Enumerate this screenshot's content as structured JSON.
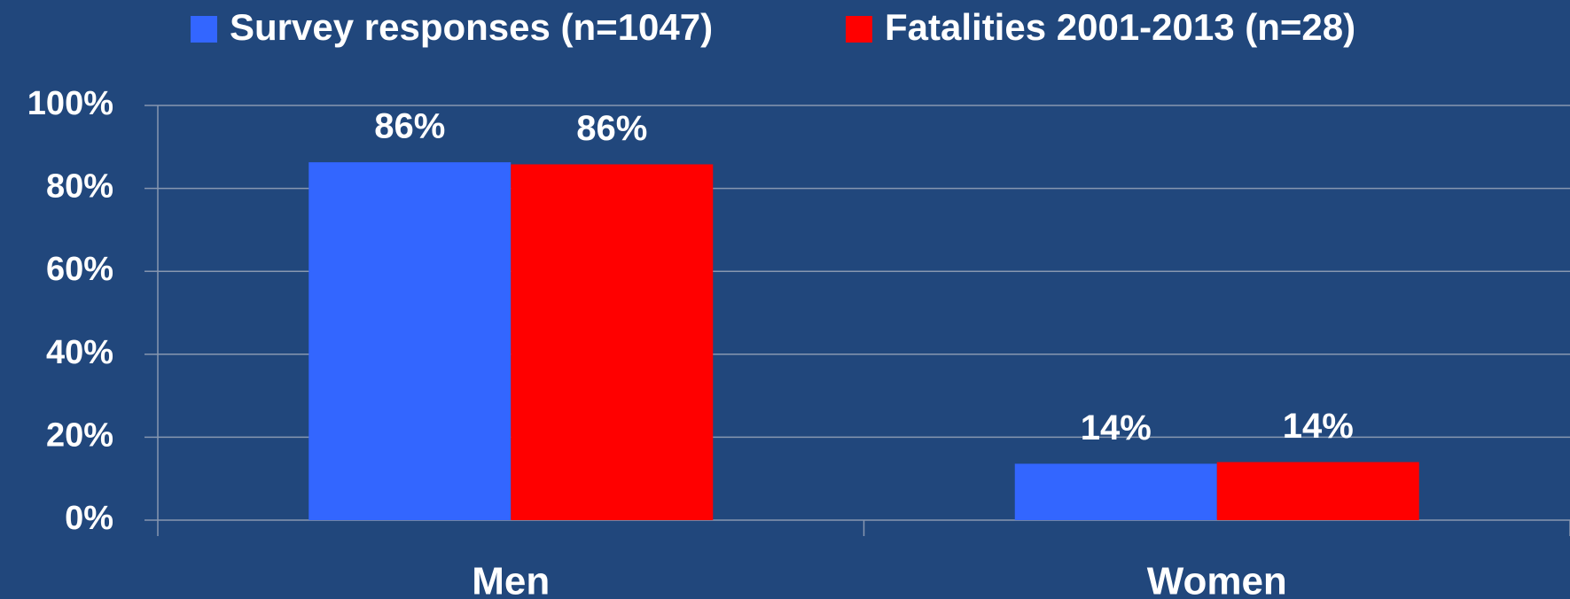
{
  "chart_data": {
    "type": "bar",
    "categories": [
      "Men",
      "Women"
    ],
    "series": [
      {
        "name": "Survey responses (n=1047)",
        "color": "#3366ff",
        "values": [
          86.3,
          13.6
        ],
        "value_labels": [
          "86%",
          "14%"
        ]
      },
      {
        "name": "Fatalities 2001-2013 (n=28)",
        "color": "#ff0000",
        "values": [
          85.8,
          14
        ],
        "value_labels": [
          "86%",
          "14%"
        ]
      }
    ],
    "ylim": [
      0,
      100
    ],
    "yticks": [
      {
        "value": 0,
        "label": "0%"
      },
      {
        "value": 20,
        "label": "20%"
      },
      {
        "value": 40,
        "label": "40%"
      },
      {
        "value": 60,
        "label": "60%"
      },
      {
        "value": 80,
        "label": "80%"
      },
      {
        "value": 100,
        "label": "100%"
      }
    ],
    "grid": true,
    "legend": "top"
  }
}
